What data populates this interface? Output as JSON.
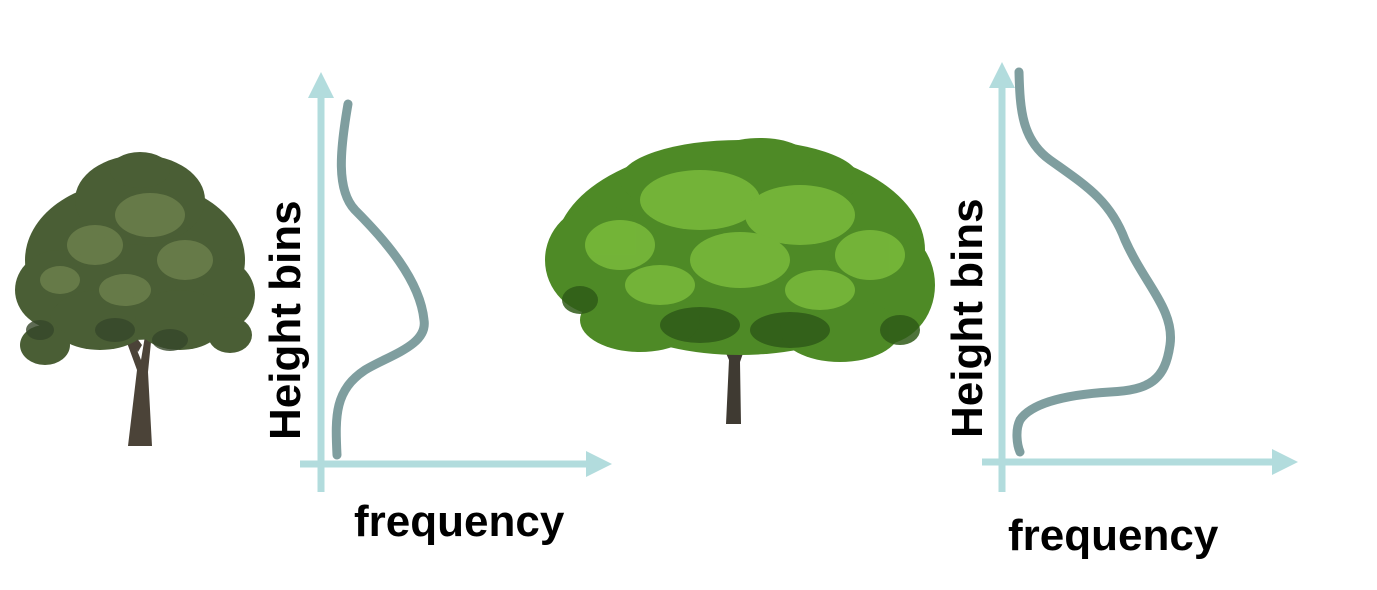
{
  "diagram": {
    "colors": {
      "axis": "#b2dcdd",
      "curve": "#7f9e9f",
      "text": "#000000",
      "tree_left_foliage": "#4a5e35",
      "tree_left_trunk": "#4b4338",
      "tree_right_foliage": "#5a9a2a",
      "tree_right_trunk": "#3f3a32"
    },
    "panels": [
      {
        "tree_icon": "narrow-tree-icon",
        "y_label": "Height bins",
        "x_label": "frequency"
      },
      {
        "tree_icon": "wide-crown-tree-icon",
        "y_label": "Height bins",
        "x_label": "frequency"
      }
    ]
  }
}
